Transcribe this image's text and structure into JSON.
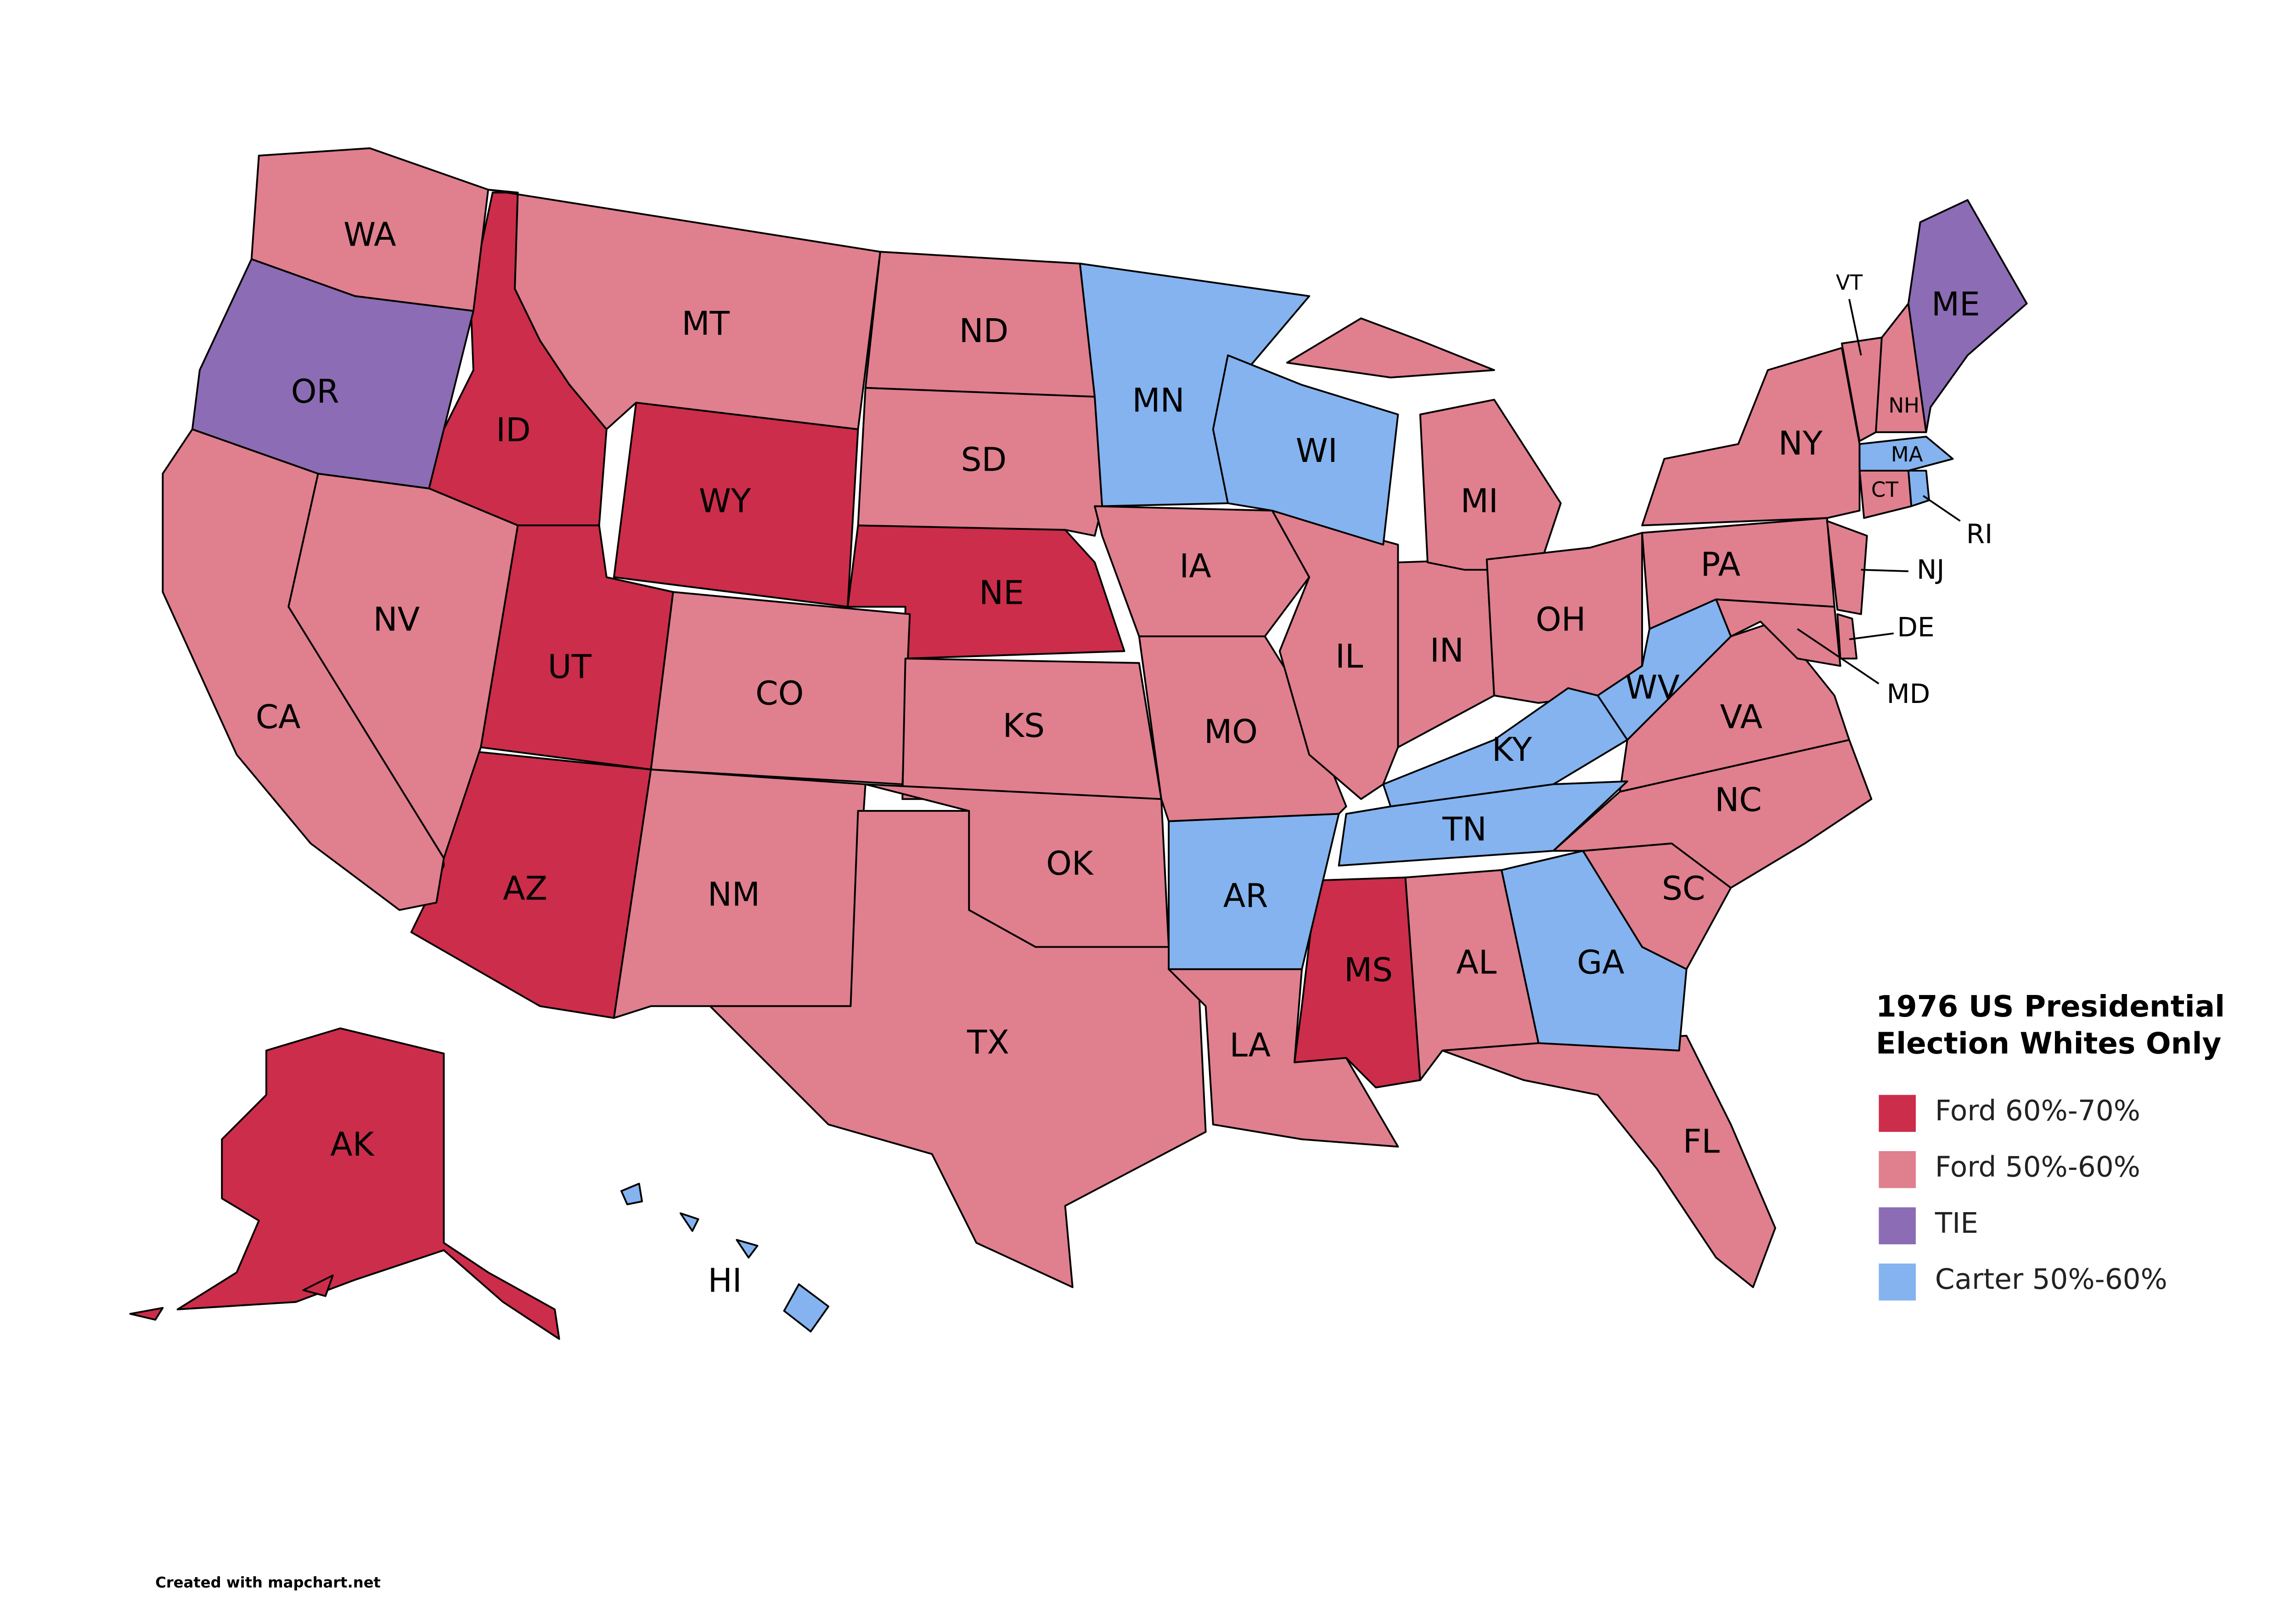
{
  "title": "1976 US Presidential Election Whites Only",
  "legend": [
    {
      "label": "Ford 60%-70%",
      "color": "#cc2d4a",
      "states": [
        "ID",
        "WY",
        "UT",
        "NE",
        "AZ",
        "MS",
        "AK"
      ]
    },
    {
      "label": "Ford 50%-60%",
      "color": "#e07f8e",
      "states": [
        "WA",
        "MT",
        "ND",
        "SD",
        "NV",
        "CA",
        "CO",
        "KS",
        "NM",
        "OK",
        "TX",
        "IA",
        "MO",
        "LA",
        "IL",
        "IN",
        "MI",
        "OH",
        "AL",
        "FL",
        "SC",
        "NC",
        "VA",
        "PA",
        "NY",
        "VT",
        "NH",
        "CT",
        "NJ",
        "DE",
        "MD"
      ]
    },
    {
      "label": "TIE",
      "color": "#8c6cb4",
      "states": [
        "OR",
        "ME"
      ]
    },
    {
      "label": "Carter 50%-60%",
      "color": "#84b3ef",
      "states": [
        "MN",
        "WI",
        "AR",
        "KY",
        "TN",
        "GA",
        "WV",
        "MA",
        "RI",
        "HI"
      ]
    }
  ],
  "footer": "Created with mapchart.net"
}
